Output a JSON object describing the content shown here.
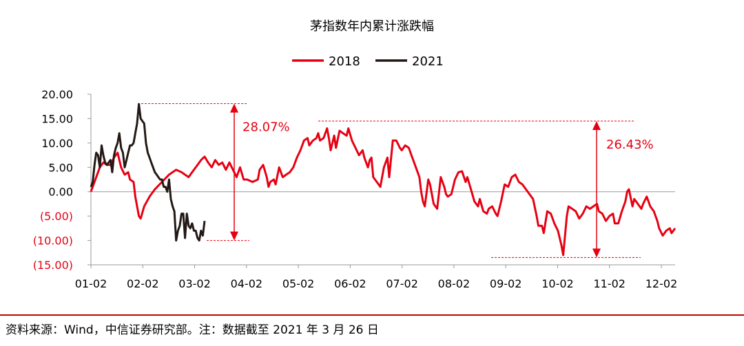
{
  "chart_data": {
    "type": "line",
    "title": "茅指数年内累计涨跌幅",
    "colors": {
      "s2018": "#e60012",
      "s2021": "#231815",
      "annotation": "#e60012",
      "negative_tick": "#e60012"
    },
    "ylim": [
      -15,
      20
    ],
    "y_ticks": [
      {
        "value": 20,
        "label": "20.00"
      },
      {
        "value": 15,
        "label": "15.00"
      },
      {
        "value": 10,
        "label": "10.00"
      },
      {
        "value": 5,
        "label": "5.00"
      },
      {
        "value": 0,
        "label": "0.00"
      },
      {
        "value": -5,
        "label": "(5.00)"
      },
      {
        "value": -10,
        "label": "(10.00)"
      },
      {
        "value": -15,
        "label": "(15.00)"
      }
    ],
    "x_ticks": [
      "01-02",
      "02-02",
      "03-02",
      "04-02",
      "05-02",
      "06-02",
      "07-02",
      "08-02",
      "09-02",
      "10-02",
      "11-02",
      "12-02"
    ],
    "legend": {
      "position": "top-center"
    },
    "series": [
      {
        "name": "2018",
        "color": "#e60012",
        "points": [
          [
            0,
            0
          ],
          [
            3,
            3
          ],
          [
            5,
            5
          ],
          [
            7,
            6
          ],
          [
            9,
            5.5
          ],
          [
            11,
            5.5
          ],
          [
            13,
            7
          ],
          [
            15,
            8
          ],
          [
            17,
            5
          ],
          [
            19,
            3.5
          ],
          [
            21,
            4
          ],
          [
            22,
            2.5
          ],
          [
            24,
            2
          ],
          [
            25,
            -1
          ],
          [
            27,
            -5
          ],
          [
            28,
            -5.5
          ],
          [
            30,
            -3
          ],
          [
            33,
            -1
          ],
          [
            36,
            0.5
          ],
          [
            40,
            2
          ],
          [
            44,
            3.5
          ],
          [
            48,
            4.5
          ],
          [
            51,
            4
          ],
          [
            53,
            3.5
          ],
          [
            55,
            3
          ],
          [
            57,
            4
          ],
          [
            60,
            5.5
          ],
          [
            62,
            6.5
          ],
          [
            64,
            7.2
          ],
          [
            66,
            6
          ],
          [
            68,
            5
          ],
          [
            70,
            6.5
          ],
          [
            72,
            5.5
          ],
          [
            74,
            6
          ],
          [
            76,
            4.5
          ],
          [
            78,
            6
          ],
          [
            80,
            4.5
          ],
          [
            82,
            3
          ],
          [
            84,
            5
          ],
          [
            86,
            2.5
          ],
          [
            88,
            2.5
          ],
          [
            91,
            2
          ],
          [
            94,
            2.5
          ],
          [
            95,
            4.5
          ],
          [
            97,
            5.5
          ],
          [
            99,
            3
          ],
          [
            100,
            1
          ],
          [
            101,
            2
          ],
          [
            103,
            2.5
          ],
          [
            104,
            1.5
          ],
          [
            106,
            5
          ],
          [
            108,
            3
          ],
          [
            110,
            3.5
          ],
          [
            112,
            4
          ],
          [
            114,
            5
          ],
          [
            116,
            7
          ],
          [
            118,
            8.5
          ],
          [
            120,
            10.5
          ],
          [
            122,
            11
          ],
          [
            123,
            9.5
          ],
          [
            125,
            10.5
          ],
          [
            127,
            11
          ],
          [
            128,
            12
          ],
          [
            129,
            10.5
          ],
          [
            131,
            11
          ],
          [
            133,
            13
          ],
          [
            134,
            11
          ],
          [
            135,
            8.5
          ],
          [
            137,
            11.5
          ],
          [
            138,
            9
          ],
          [
            140,
            12.5
          ],
          [
            142,
            12
          ],
          [
            144,
            11.5
          ],
          [
            145,
            13
          ],
          [
            147,
            10.5
          ],
          [
            149,
            9
          ],
          [
            151,
            7.5
          ],
          [
            153,
            8.5
          ],
          [
            154,
            7
          ],
          [
            156,
            5
          ],
          [
            157,
            6.5
          ],
          [
            158,
            7
          ],
          [
            159,
            3
          ],
          [
            161,
            2
          ],
          [
            163,
            1
          ],
          [
            165,
            5
          ],
          [
            167,
            7
          ],
          [
            168,
            3
          ],
          [
            170,
            10.5
          ],
          [
            172,
            10.5
          ],
          [
            174,
            9
          ],
          [
            175,
            8.5
          ],
          [
            177,
            9.5
          ],
          [
            179,
            9
          ],
          [
            181,
            7
          ],
          [
            183,
            5
          ],
          [
            185,
            3
          ],
          [
            186,
            0
          ],
          [
            187,
            -2
          ],
          [
            188,
            -3
          ],
          [
            190,
            2.5
          ],
          [
            191,
            1.5
          ],
          [
            193,
            -2.5
          ],
          [
            195,
            -3.5
          ],
          [
            197,
            3
          ],
          [
            199,
            1
          ],
          [
            200,
            -0.5
          ],
          [
            201,
            -1
          ],
          [
            203,
            -0.5
          ],
          [
            205,
            2.5
          ],
          [
            207,
            4
          ],
          [
            209,
            4.2
          ],
          [
            211,
            2
          ],
          [
            212,
            3
          ],
          [
            214,
            0.5
          ],
          [
            216,
            -2
          ],
          [
            218,
            -3
          ],
          [
            219,
            -1.5
          ],
          [
            221,
            -4
          ],
          [
            223,
            -4.5
          ],
          [
            224,
            -3.5
          ],
          [
            226,
            -3
          ],
          [
            228,
            -4.5
          ],
          [
            229,
            -5
          ],
          [
            231,
            -2
          ],
          [
            233,
            1.5
          ],
          [
            235,
            1
          ],
          [
            237,
            3
          ],
          [
            239,
            3.5
          ],
          [
            241,
            2
          ],
          [
            243,
            1.5
          ],
          [
            245,
            0.5
          ],
          [
            247,
            -0.5
          ],
          [
            249,
            -1.5
          ],
          [
            251,
            -5
          ],
          [
            252,
            -7
          ],
          [
            254,
            -7
          ],
          [
            255,
            -8.5
          ],
          [
            257,
            -4
          ],
          [
            259,
            -4.5
          ],
          [
            261,
            -6.5
          ],
          [
            263,
            -8
          ],
          [
            265,
            -11
          ],
          [
            266,
            -13
          ],
          [
            267,
            -9
          ],
          [
            268,
            -5
          ],
          [
            269,
            -3
          ],
          [
            271,
            -3.5
          ],
          [
            273,
            -4
          ],
          [
            275,
            -5.5
          ],
          [
            277,
            -4.5
          ],
          [
            279,
            -3
          ],
          [
            281,
            -3.5
          ],
          [
            283,
            -3
          ],
          [
            285,
            -2.5
          ],
          [
            286,
            -4
          ],
          [
            288,
            -4.5
          ],
          [
            290,
            -6
          ],
          [
            292,
            -5
          ],
          [
            294,
            -4.5
          ],
          [
            295,
            -6.5
          ],
          [
            297,
            -6.5
          ],
          [
            299,
            -4
          ],
          [
            301,
            -2
          ],
          [
            302,
            0
          ],
          [
            303,
            0.5
          ],
          [
            305,
            -3
          ],
          [
            306,
            -1.5
          ],
          [
            308,
            -2.5
          ],
          [
            310,
            -3.5
          ],
          [
            311,
            -2.5
          ],
          [
            313,
            -1
          ],
          [
            315,
            -3
          ],
          [
            317,
            -4
          ],
          [
            319,
            -6
          ],
          [
            320,
            -7.5
          ],
          [
            322,
            -9
          ],
          [
            324,
            -8
          ],
          [
            326,
            -7.5
          ],
          [
            327,
            -8.5
          ],
          [
            329,
            -7.5
          ]
        ]
      },
      {
        "name": "2021",
        "color": "#231815",
        "points": [
          [
            0,
            1
          ],
          [
            1,
            2
          ],
          [
            2,
            5.5
          ],
          [
            3,
            8
          ],
          [
            4,
            7.5
          ],
          [
            5,
            5
          ],
          [
            6,
            9.5
          ],
          [
            7,
            7.5
          ],
          [
            8,
            6
          ],
          [
            9,
            5.5
          ],
          [
            10,
            6
          ],
          [
            11,
            6.5
          ],
          [
            12,
            4
          ],
          [
            13,
            7.5
          ],
          [
            14,
            9
          ],
          [
            15,
            10
          ],
          [
            16,
            12
          ],
          [
            17,
            9
          ],
          [
            18,
            8
          ],
          [
            19,
            5
          ],
          [
            20,
            6.5
          ],
          [
            21,
            8
          ],
          [
            22,
            9.5
          ],
          [
            23,
            9.5
          ],
          [
            24,
            10
          ],
          [
            25,
            12
          ],
          [
            26,
            14
          ],
          [
            27,
            18
          ],
          [
            28,
            15
          ],
          [
            29,
            14.5
          ],
          [
            30,
            14
          ],
          [
            31,
            10
          ],
          [
            32,
            8
          ],
          [
            33,
            7
          ],
          [
            34,
            6
          ],
          [
            35,
            5
          ],
          [
            36,
            4
          ],
          [
            37,
            3.5
          ],
          [
            38,
            3
          ],
          [
            39,
            2.5
          ],
          [
            40,
            2.5
          ],
          [
            41,
            1
          ],
          [
            42,
            1
          ],
          [
            43,
            0
          ],
          [
            44,
            2.5
          ],
          [
            45,
            -1.5
          ],
          [
            46,
            -3
          ],
          [
            47,
            -4
          ],
          [
            48,
            -10
          ],
          [
            49,
            -8
          ],
          [
            50,
            -7
          ],
          [
            51,
            -4.5
          ],
          [
            52,
            -4.5
          ],
          [
            53,
            -9.5
          ],
          [
            54,
            -4.5
          ],
          [
            55,
            -7
          ],
          [
            56,
            -7.5
          ],
          [
            57,
            -6.5
          ],
          [
            58,
            -8
          ],
          [
            59,
            -8
          ],
          [
            60,
            -9.5
          ],
          [
            61,
            -10
          ],
          [
            62,
            -8
          ],
          [
            63,
            -9
          ],
          [
            64,
            -6
          ]
        ]
      }
    ],
    "annotations": [
      {
        "label": "28.07%",
        "y_top": 18.07,
        "y_bottom": -10
      },
      {
        "label": "26.43%",
        "y_top": 14.5,
        "y_bottom": -13.5
      }
    ]
  },
  "source_note": "资料来源：Wind，中信证券研究部。注：数据截至 2021 年 3 月 26 日"
}
